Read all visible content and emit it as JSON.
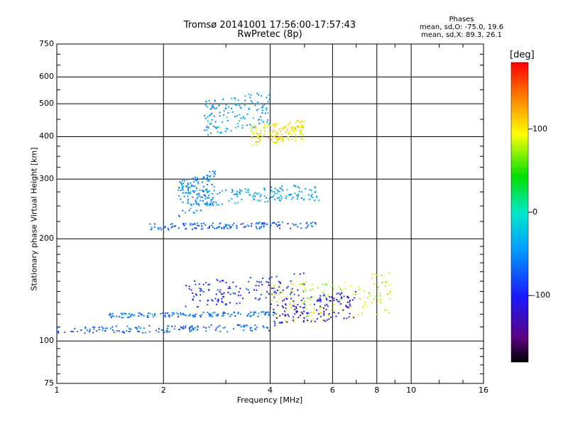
{
  "chart_data": {
    "type": "scatter",
    "title": "Tromsø 20141001 17:56:00-17:57:43",
    "subtitle": "RwPretec (8p)",
    "xlabel": "Frequency [MHz]",
    "ylabel": "Stationary phase Virtual Height [km]",
    "x_scale": "log",
    "y_scale": "log",
    "xlim": [
      1,
      16
    ],
    "ylim": [
      75,
      750
    ],
    "x_ticks": [
      1,
      2,
      4,
      6,
      8,
      10,
      16
    ],
    "x_tick_labels": [
      "1",
      "2",
      "4",
      "6",
      "8",
      "10",
      "16"
    ],
    "y_ticks": [
      75,
      100,
      200,
      300,
      400,
      500,
      600,
      750
    ],
    "y_tick_labels": [
      "75",
      "100",
      "200",
      "300",
      "400",
      "500",
      "600",
      "750"
    ],
    "grid": true,
    "colorbar": {
      "label": "[deg]",
      "range": [
        -180,
        180
      ],
      "ticks": [
        100,
        0,
        -100
      ],
      "tick_labels": [
        "100",
        "0",
        "-100"
      ],
      "colormap": "rainbow"
    },
    "stats_box": {
      "title": "Phases",
      "line1": "mean, sd,O: -75.0, 19.6",
      "line2": "mean, sd,X:  89.3, 26.1"
    },
    "series": [
      {
        "mode": "O",
        "kind": "E-layer trace",
        "x_range": [
          1.0,
          4.0
        ],
        "y_range": [
          105,
          112
        ],
        "phase_deg": -70
      },
      {
        "mode": "O",
        "kind": "F-layer trace",
        "x_range": [
          1.4,
          4.2
        ],
        "y_range": [
          117,
          122
        ],
        "phase_deg": -60
      },
      {
        "mode": "O",
        "kind": "F-layer trace",
        "x_range": [
          2.3,
          5.0
        ],
        "y_range": [
          125,
          160
        ],
        "phase_deg": -95
      },
      {
        "mode": "X",
        "kind": "lower trace",
        "x_range": [
          4.0,
          8.8
        ],
        "y_range": [
          110,
          160
        ],
        "phase_deg": 85
      },
      {
        "mode": "O",
        "kind": "lower trace",
        "x_range": [
          4.0,
          7.0
        ],
        "y_range": [
          110,
          140
        ],
        "phase_deg": -110
      },
      {
        "mode": "O",
        "kind": "F2 trace",
        "x_range": [
          1.8,
          5.5
        ],
        "y_range": [
          212,
          225
        ],
        "phase_deg": -70
      },
      {
        "mode": "O",
        "kind": "F2 spread",
        "x_range": [
          2.2,
          2.8
        ],
        "y_range": [
          230,
          320
        ],
        "phase_deg": -50
      },
      {
        "mode": "O",
        "kind": "F2 upper",
        "x_range": [
          2.6,
          5.5
        ],
        "y_range": [
          250,
          290
        ],
        "phase_deg": -40
      },
      {
        "mode": "O",
        "kind": "second hop",
        "x_range": [
          2.6,
          4.0
        ],
        "y_range": [
          400,
          550
        ],
        "phase_deg": -40
      },
      {
        "mode": "X",
        "kind": "second hop",
        "x_range": [
          3.5,
          5.0
        ],
        "y_range": [
          375,
          450
        ],
        "phase_deg": 100
      }
    ]
  }
}
